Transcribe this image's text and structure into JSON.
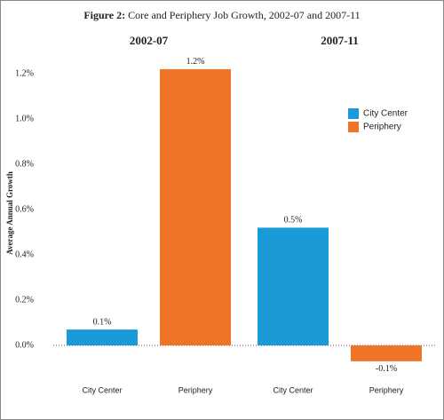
{
  "chart_data": {
    "type": "bar",
    "title_label": "Figure 2:",
    "title": "Core and Periphery Job Growth, 2002-07 and 2007-11",
    "ylabel": "Average Annual Growth",
    "categories": [
      "2002-07",
      "2007-11"
    ],
    "series": [
      {
        "name": "City Center",
        "color": "#1a9ad6",
        "values": [
          0.07,
          0.52
        ],
        "value_labels": [
          "0.1%",
          "0.5%"
        ]
      },
      {
        "name": "Periphery",
        "color": "#f07427",
        "values": [
          1.22,
          -0.07
        ],
        "value_labels": [
          "1.2%",
          "-0.1%"
        ]
      }
    ],
    "ylim": [
      -0.12,
      1.28
    ],
    "yticks": [
      {
        "value": 0,
        "label": "0.0%"
      },
      {
        "value": 0.2,
        "label": "0.2%"
      },
      {
        "value": 0.4,
        "label": "0.4%"
      },
      {
        "value": 0.6,
        "label": "0.6%"
      },
      {
        "value": 0.8,
        "label": "0.8%"
      },
      {
        "value": 1.0,
        "label": "1.0%"
      },
      {
        "value": 1.2,
        "label": "1.2%"
      }
    ],
    "grid": false,
    "legend": "upper right"
  }
}
